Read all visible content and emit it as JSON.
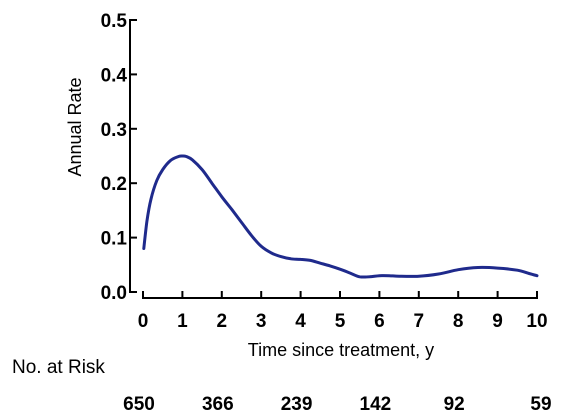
{
  "chart_data": {
    "type": "line",
    "title": "",
    "xlabel": "Time since treatment, y",
    "ylabel": "Annual Rate",
    "xlim": [
      0,
      10
    ],
    "ylim": [
      0,
      0.5
    ],
    "x_ticks": [
      0,
      1,
      2,
      3,
      4,
      5,
      6,
      7,
      8,
      9,
      10
    ],
    "x_tick_labels": [
      "0",
      "1",
      "2",
      "3",
      "4",
      "5",
      "6",
      "7",
      "8",
      "9",
      "10"
    ],
    "y_ticks": [
      0,
      0.1,
      0.2,
      0.3,
      0.4,
      0.5
    ],
    "y_tick_labels": [
      "0.0",
      "0.1",
      "0.2",
      "0.3",
      "0.4",
      "0.5"
    ],
    "grid": false,
    "legend": "none",
    "line_color": "#1f2a8c",
    "series": [
      {
        "x": [
          0.02,
          0.1,
          0.2,
          0.35,
          0.5,
          0.7,
          0.9,
          1.0,
          1.1,
          1.25,
          1.5,
          1.75,
          2.0,
          2.25,
          2.5,
          2.75,
          3.0,
          3.25,
          3.5,
          3.75,
          4.0,
          4.25,
          4.5,
          4.75,
          5.0,
          5.25,
          5.5,
          5.75,
          6.0,
          6.25,
          6.5,
          7.0,
          7.5,
          8.0,
          8.5,
          9.0,
          9.5,
          9.8,
          10.0
        ],
        "y": [
          0.08,
          0.13,
          0.17,
          0.205,
          0.225,
          0.242,
          0.249,
          0.25,
          0.249,
          0.243,
          0.225,
          0.2,
          0.175,
          0.152,
          0.128,
          0.104,
          0.084,
          0.072,
          0.065,
          0.061,
          0.06,
          0.058,
          0.053,
          0.048,
          0.042,
          0.035,
          0.028,
          0.028,
          0.03,
          0.03,
          0.029,
          0.029,
          0.033,
          0.041,
          0.045,
          0.044,
          0.04,
          0.034,
          0.03
        ]
      }
    ]
  },
  "risk_table": {
    "heading": "No. at Risk",
    "values": [
      {
        "x": 0,
        "count": "650"
      },
      {
        "x": 2,
        "count": "366"
      },
      {
        "x": 4,
        "count": "239"
      },
      {
        "x": 6,
        "count": "142"
      },
      {
        "x": 8,
        "count": "92"
      },
      {
        "x": 10,
        "count": "59"
      }
    ]
  }
}
